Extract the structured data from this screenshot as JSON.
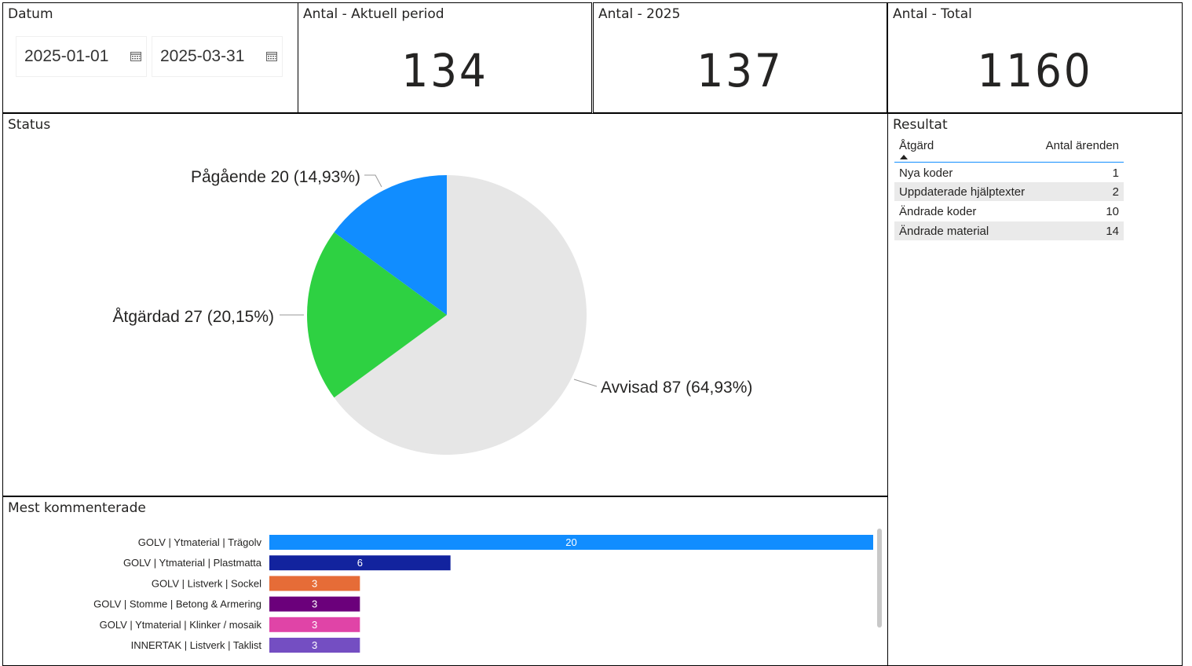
{
  "datum": {
    "title": "Datum",
    "start_date": "2025-01-01",
    "end_date": "2025-03-31"
  },
  "kpis": [
    {
      "title": "Antal - Aktuell period",
      "value": "134"
    },
    {
      "title": "Antal - 2025",
      "value": "137"
    },
    {
      "title": "Antal - Total",
      "value": "1160"
    }
  ],
  "status": {
    "title": "Status"
  },
  "resultat": {
    "title": "Resultat",
    "col_action": "Åtgärd",
    "col_count": "Antal ärenden",
    "rows": [
      {
        "name": "Nya koder",
        "value": "1"
      },
      {
        "name": "Uppdaterade hjälptexter",
        "value": "2"
      },
      {
        "name": "Ändrade koder",
        "value": "10"
      },
      {
        "name": "Ändrade material",
        "value": "14"
      }
    ]
  },
  "mest": {
    "title": "Mest kommenterade"
  },
  "colors": {
    "blue": "#118dff",
    "green": "#2ed142",
    "grey": "#e6e6e6",
    "navy": "#12239e",
    "orange": "#e66c37",
    "purple": "#6b007b",
    "pink": "#e044a7",
    "violet": "#744ec2"
  },
  "chart_data": [
    {
      "type": "pie",
      "title": "Status",
      "slices": [
        {
          "label": "Avvisad",
          "value": 87,
          "percent": "64,93%",
          "color": "#e6e6e6",
          "text": "Avvisad 87 (64,93%)"
        },
        {
          "label": "Åtgärdad",
          "value": 27,
          "percent": "20,15%",
          "color": "#2ed142",
          "text": "Åtgärdad 27 (20,15%)"
        },
        {
          "label": "Pågående",
          "value": 20,
          "percent": "14,93%",
          "color": "#118dff",
          "text": "Pågående 20 (14,93%)"
        }
      ]
    },
    {
      "type": "bar",
      "orientation": "horizontal",
      "title": "Mest kommenterade",
      "categories": [
        "GOLV | Ytmaterial | Trägolv",
        "GOLV | Ytmaterial | Plastmatta",
        "GOLV | Listverk | Sockel",
        "GOLV | Stomme | Betong & Armering",
        "GOLV | Ytmaterial | Klinker / mosaik",
        "INNERTAK | Listverk | Taklist"
      ],
      "values": [
        20,
        6,
        3,
        3,
        3,
        3
      ],
      "colors": [
        "#118dff",
        "#12239e",
        "#e66c37",
        "#6b007b",
        "#e044a7",
        "#744ec2"
      ],
      "xlim": [
        0,
        20
      ]
    }
  ]
}
